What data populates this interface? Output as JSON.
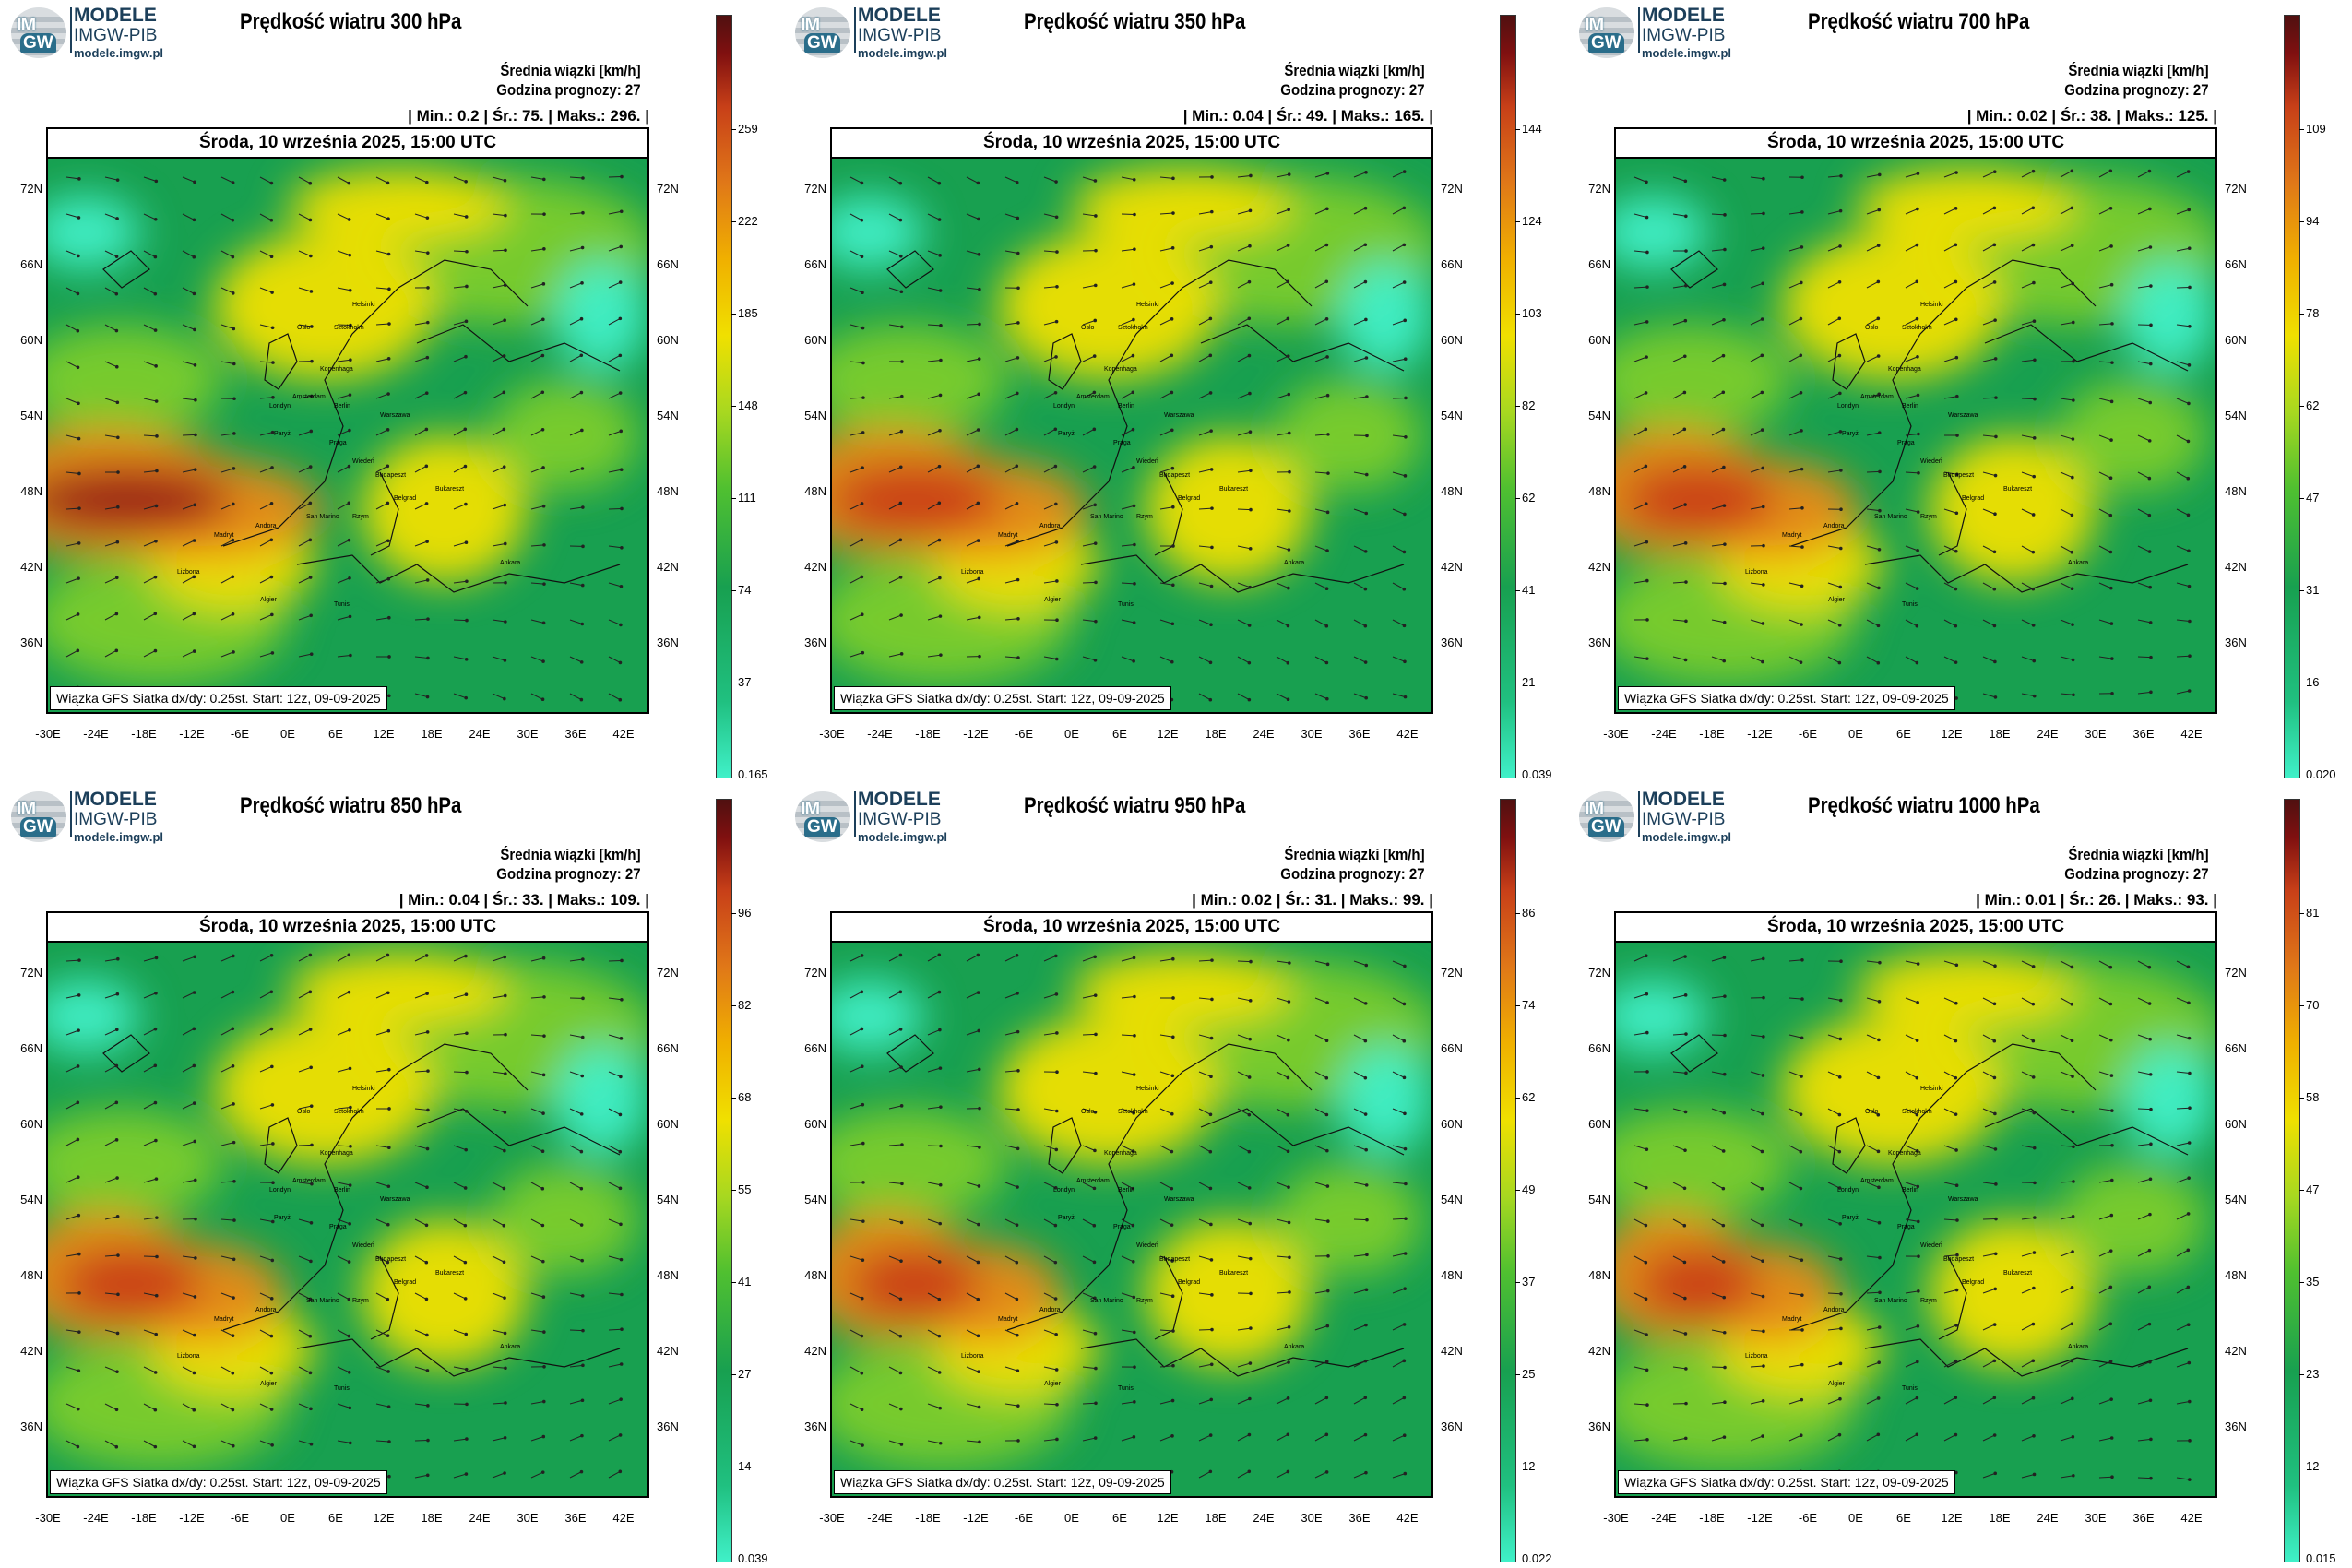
{
  "brand": {
    "line1": "MODELE",
    "line2": "IMGW-PIB",
    "line3": "modele.imgw.pl",
    "logo_top": "IM",
    "logo_bottom": "GW"
  },
  "common": {
    "unit": "Średnia wiązki [km/h]",
    "forecast_hour": "Godzina prognozy: 27",
    "date": "Środa, 10 września 2025, 15:00 UTC",
    "footer": "Wiązka GFS Siatka dx/dy: 0.25st. Start: 12z, 09-09-2025",
    "lat_labels": [
      "72N",
      "66N",
      "60N",
      "54N",
      "48N",
      "42N",
      "36N"
    ],
    "lon_labels": [
      "-30E",
      "-24E",
      "-18E",
      "-12E",
      "-6E",
      "0E",
      "6E",
      "12E",
      "18E",
      "24E",
      "30E",
      "36E",
      "42E"
    ],
    "city_labels": [
      "Oslo",
      "Helsinki",
      "Sztokholm",
      "Kopenhaga",
      "Londyn",
      "Amsterdam",
      "Berlin",
      "Warszawa",
      "Paryż",
      "Praga",
      "Wiedeń",
      "Budapeszt",
      "Bukareszt",
      "Belgrad",
      "Rzym",
      "Madryt",
      "Lizbona",
      "Ankara",
      "Tunis",
      "Algier",
      "Andora",
      "San Marino"
    ]
  },
  "colors": {
    "low": "#40f0c8",
    "green": "#18a050",
    "lightgreen": "#7ccc2c",
    "yellow": "#f0e000",
    "orange": "#e88a18",
    "red": "#c83c18",
    "darkred": "#701010"
  },
  "panels": [
    {
      "title": "Prędkość wiatru 300 hPa",
      "stats": "| Min.:   0.2 | Śr.:   75. | Maks.:   296. |",
      "cbar_ticks": [
        "259",
        "222",
        "185",
        "148",
        "111",
        "74",
        "37"
      ],
      "cbar_min": "0.165",
      "intensity": 1.0
    },
    {
      "title": "Prędkość wiatru 350 hPa",
      "stats": "| Min.:   0.04 | Śr.:   49. | Maks.:   165. |",
      "cbar_ticks": [
        "144",
        "124",
        "103",
        "82",
        "62",
        "41",
        "21"
      ],
      "cbar_min": "0.039",
      "intensity": 0.85
    },
    {
      "title": "Prędkość wiatru 700 hPa",
      "stats": "| Min.:   0.02 | Śr.:   38. | Maks.:   125. |",
      "cbar_ticks": [
        "109",
        "94",
        "78",
        "62",
        "47",
        "31",
        "16"
      ],
      "cbar_min": "0.020",
      "intensity": 0.75
    },
    {
      "title": "Prędkość wiatru 850 hPa",
      "stats": "| Min.:   0.04 | Śr.:   33. | Maks.:   109. |",
      "cbar_ticks": [
        "96",
        "82",
        "68",
        "55",
        "41",
        "27",
        "14"
      ],
      "cbar_min": "0.039",
      "intensity": 0.7
    },
    {
      "title": "Prędkość wiatru 950 hPa",
      "stats": "| Min.:   0.02 | Śr.:   31. | Maks.:   99. |",
      "cbar_ticks": [
        "86",
        "74",
        "62",
        "49",
        "37",
        "25",
        "12"
      ],
      "cbar_min": "0.022",
      "intensity": 0.65
    },
    {
      "title": "Prędkość wiatru 1000 hPa",
      "stats": "| Min.:   0.01 | Śr.:   26. | Maks.:   93. |",
      "cbar_ticks": [
        "81",
        "70",
        "58",
        "47",
        "35",
        "23",
        "12"
      ],
      "cbar_min": "0.015",
      "intensity": 0.6
    }
  ]
}
